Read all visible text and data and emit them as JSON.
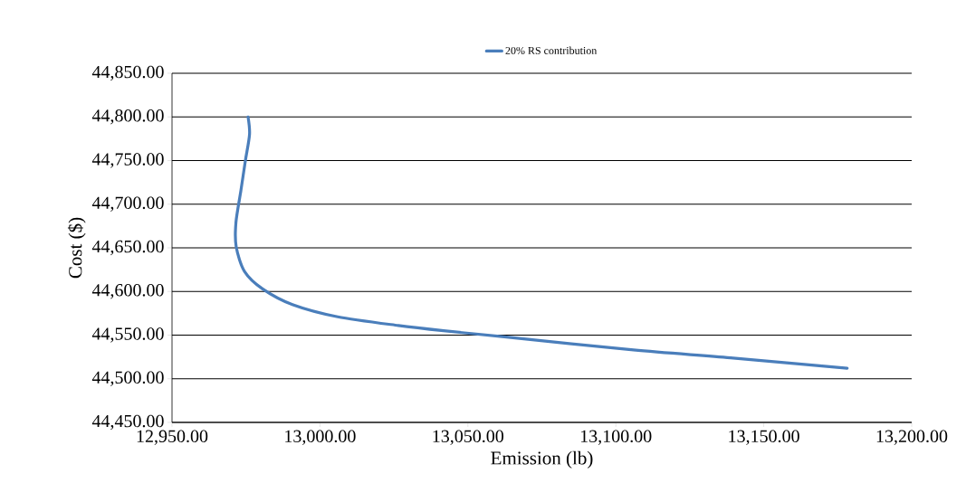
{
  "chart_data": {
    "type": "line",
    "xlabel": "Emission (lb)",
    "ylabel": "Cost ($)",
    "series": [
      {
        "name": "20% RS contribution",
        "color": "#4a7ebb",
        "x": [
          12975.7,
          12976.2,
          12974.8,
          12973.3,
          12971.6,
          12971.7,
          12974.5,
          12980.6,
          12990.7,
          13006,
          13026.5,
          13041.8,
          13062.3,
          13106,
          13138.8,
          13178.2
        ],
        "values": [
          44800,
          44780,
          44750,
          44716,
          44679,
          44651,
          44623,
          44603,
          44585,
          44571,
          44561,
          44555,
          44548,
          44533,
          44524,
          44512
        ]
      }
    ],
    "xlim": [
      12950,
      13200
    ],
    "ylim": [
      44450,
      44850
    ],
    "xticks": [
      {
        "value": 12950,
        "label": "12,950.00"
      },
      {
        "value": 13000,
        "label": "13,000.00"
      },
      {
        "value": 13050,
        "label": "13,050.00"
      },
      {
        "value": 13100,
        "label": "13,100.00"
      },
      {
        "value": 13150,
        "label": "13,150.00"
      },
      {
        "value": 13200,
        "label": "13,200.00"
      }
    ],
    "yticks": [
      {
        "value": 44450,
        "label": "44,450.00"
      },
      {
        "value": 44500,
        "label": "44,500.00"
      },
      {
        "value": 44550,
        "label": "44,550.00"
      },
      {
        "value": 44600,
        "label": "44,600.00"
      },
      {
        "value": 44650,
        "label": "44,650.00"
      },
      {
        "value": 44700,
        "label": "44,700.00"
      },
      {
        "value": 44750,
        "label": "44,750.00"
      },
      {
        "value": 44800,
        "label": "44,800.00"
      },
      {
        "value": 44850,
        "label": "44,850.00"
      }
    ],
    "grid": "y",
    "legend": "top",
    "marker": "none",
    "line_style": "solid"
  }
}
